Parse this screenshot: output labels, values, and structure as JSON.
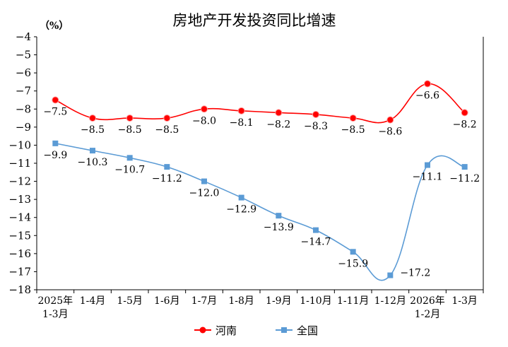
{
  "chart_data": {
    "type": "line",
    "title": "房地产开发投资同比增速",
    "ylabel": "（%）",
    "ylim": [
      -18,
      -4
    ],
    "yticks": [
      -4,
      -5,
      -6,
      -7,
      -8,
      -9,
      -10,
      -11,
      -12,
      -13,
      -14,
      -15,
      -16,
      -17,
      -18
    ],
    "grid": false,
    "legend": "bottom",
    "categories": [
      [
        "2025年",
        "1-3月"
      ],
      [
        "1-4月"
      ],
      [
        "1-5月"
      ],
      [
        "1-6月"
      ],
      [
        "1-7月"
      ],
      [
        "1-8月"
      ],
      [
        "1-9月"
      ],
      [
        "1-10月"
      ],
      [
        "1-11月"
      ],
      [
        "1-12月"
      ],
      [
        "2026年",
        "1-2月"
      ],
      [
        "1-3月"
      ]
    ],
    "series": [
      {
        "name": "河南",
        "color": "#ff0000",
        "marker": "circle",
        "values": [
          -7.5,
          -8.5,
          -8.5,
          -8.5,
          -8.0,
          -8.1,
          -8.2,
          -8.3,
          -8.5,
          -8.6,
          -6.6,
          -8.2
        ]
      },
      {
        "name": "全国",
        "color": "#5b9bd5",
        "marker": "square",
        "values": [
          -9.9,
          -10.3,
          -10.7,
          -11.2,
          -12.0,
          -12.9,
          -13.9,
          -14.7,
          -15.9,
          -17.2,
          -11.1,
          -11.2
        ]
      }
    ]
  }
}
